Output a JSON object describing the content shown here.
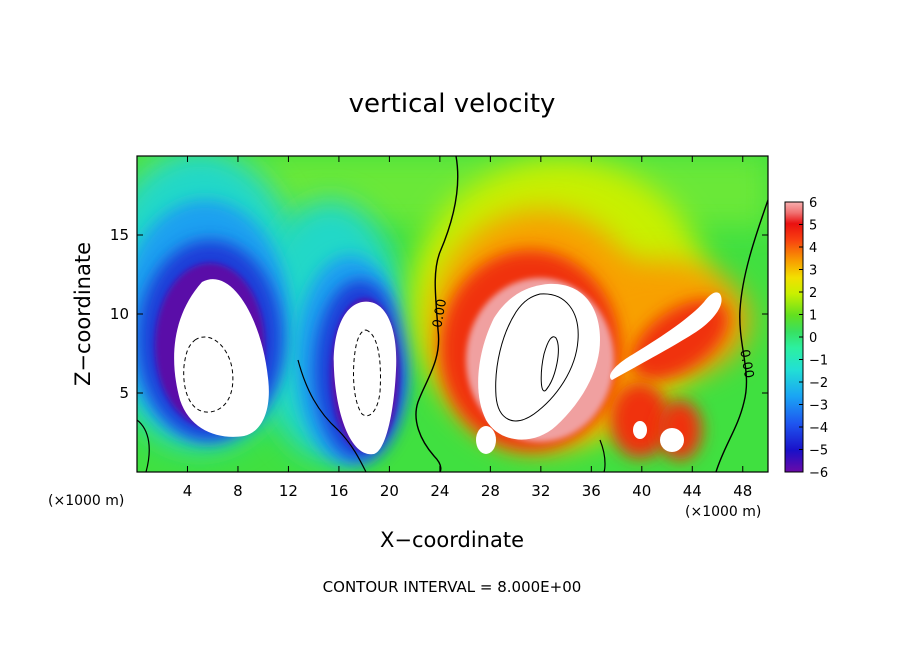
{
  "chart_data": {
    "type": "heatmap",
    "title": "vertical velocity",
    "xlabel": "X−coordinate",
    "ylabel": "Z−coordinate",
    "x_unit_left": "(×1000 m)",
    "x_unit_right": "(×1000 m)",
    "xlim": [
      0,
      50
    ],
    "ylim": [
      0,
      20
    ],
    "x_ticks": [
      4,
      8,
      12,
      16,
      20,
      24,
      28,
      32,
      36,
      40,
      44,
      48
    ],
    "y_ticks": [
      5,
      10,
      15
    ],
    "colorbar": {
      "min": -6,
      "max": 6,
      "ticks": [
        "6",
        "5",
        "4",
        "3",
        "2",
        "1",
        "0",
        "−1",
        "−2",
        "−3",
        "−4",
        "−5",
        "−6"
      ],
      "below_range_color": "#ffffff",
      "above_range_color": "#ffffff"
    },
    "contour_labels": [
      {
        "text": "0.00",
        "x": 24.3,
        "y": 10.0,
        "rotation": -80
      },
      {
        "text": "0.00",
        "x": 48.0,
        "y": 6.8,
        "rotation": 80
      }
    ],
    "features": [
      {
        "sign": "negative",
        "x": 5.5,
        "z": 6.5,
        "note": "strong downdraft core"
      },
      {
        "sign": "negative",
        "x": 18.0,
        "z": 6.5,
        "note": "downdraft core"
      },
      {
        "sign": "positive",
        "x": 31.0,
        "z": 7.5,
        "note": "strong updraft core"
      },
      {
        "sign": "positive",
        "x": 42.5,
        "z": 7.0,
        "note": "tilted updraft band"
      }
    ],
    "footer": "CONTOUR INTERVAL = 8.000E+00"
  }
}
